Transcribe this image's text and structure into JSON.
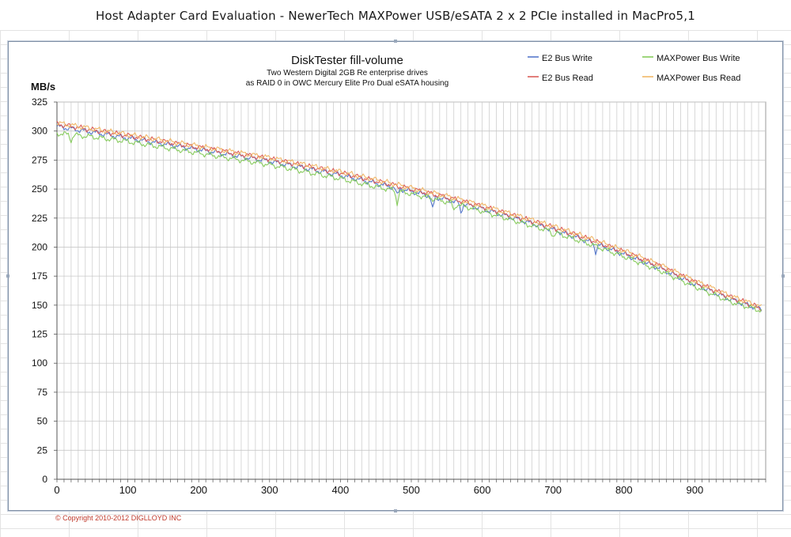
{
  "page": {
    "title": "Host Adapter Card Evaluation - NewerTech MAXPower USB/eSATA 2 x 2 PCIe installed in MacPro5,1",
    "copyright": "© Copyright 2010-2012 DIGLLOYD INC"
  },
  "chart_data": {
    "type": "line",
    "title": "DiskTester fill-volume",
    "subtitle_lines": [
      "Two Western Digital 2GB Re enterprise drives",
      "as RAID 0 in OWC Mercury Elite Pro Dual eSATA housing"
    ],
    "ylabel": "MB/s",
    "xlabel": "",
    "xlim": [
      0,
      1000
    ],
    "ylim": [
      0,
      325
    ],
    "x_ticks": [
      0,
      100,
      200,
      300,
      400,
      500,
      600,
      700,
      800,
      900
    ],
    "y_ticks": [
      0,
      25,
      50,
      75,
      100,
      125,
      150,
      175,
      200,
      225,
      250,
      275,
      300,
      325
    ],
    "grid": true,
    "legend_position": "top-right",
    "x": [
      0,
      50,
      100,
      150,
      200,
      250,
      300,
      350,
      400,
      450,
      500,
      550,
      600,
      650,
      700,
      750,
      800,
      850,
      900,
      950,
      995
    ],
    "series": [
      {
        "name": "E2 Bus Write",
        "color": "#4a6fc9",
        "values": [
          304,
          299,
          294,
          289,
          284,
          279,
          274,
          268,
          262,
          255,
          248,
          241,
          233,
          224,
          215,
          205,
          194,
          182,
          168,
          155,
          146
        ],
        "dips": [
          [
            480,
            244
          ],
          [
            530,
            232
          ],
          [
            570,
            230
          ],
          [
            760,
            196
          ]
        ]
      },
      {
        "name": "E2 Bus Read",
        "color": "#d9534f",
        "values": [
          306,
          301,
          296,
          291,
          286,
          281,
          276,
          270,
          264,
          257,
          250,
          243,
          235,
          226,
          217,
          207,
          196,
          184,
          170,
          157,
          147
        ],
        "dips": []
      },
      {
        "name": "MAXPower Bus Write",
        "color": "#7ec850",
        "values": [
          298,
          295,
          291,
          286,
          281,
          276,
          271,
          265,
          259,
          252,
          246,
          239,
          231,
          222,
          213,
          203,
          192,
          180,
          166,
          153,
          145
        ],
        "dips": [
          [
            20,
            292
          ],
          [
            480,
            238
          ],
          [
            560,
            232
          ],
          [
            700,
            210
          ]
        ]
      },
      {
        "name": "MAXPower Bus Read",
        "color": "#f0b25c",
        "values": [
          307,
          302,
          297,
          292,
          287,
          282,
          277,
          271,
          265,
          258,
          251,
          244,
          236,
          227,
          218,
          208,
          197,
          185,
          171,
          158,
          148
        ],
        "dips": []
      }
    ]
  }
}
